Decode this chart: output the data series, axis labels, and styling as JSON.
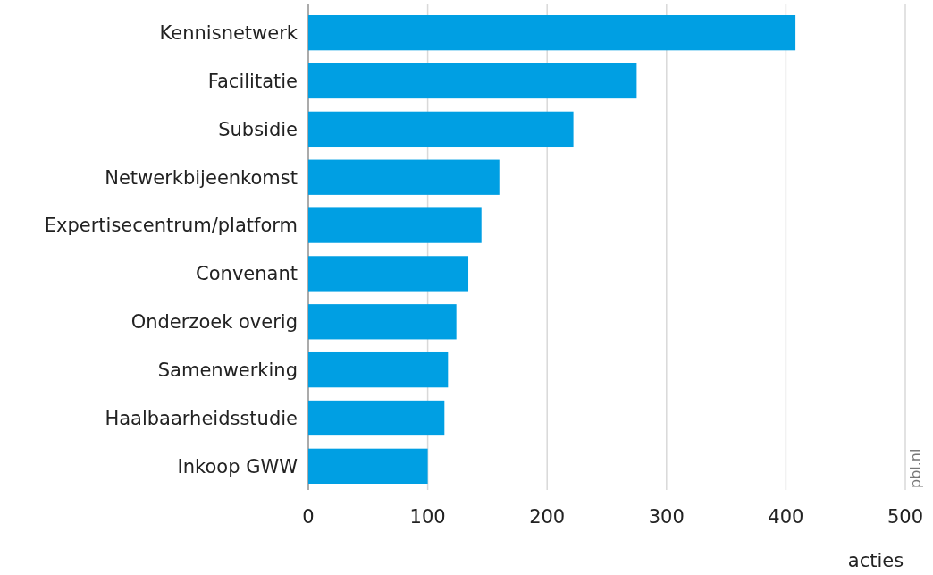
{
  "chart_data": {
    "type": "bar",
    "orientation": "horizontal",
    "categories": [
      "Kennisnetwerk",
      "Facilitatie",
      "Subsidie",
      "Netwerkbijeenkomst",
      "Expertisecentrum/platform",
      "Convenant",
      "Onderzoek overig",
      "Samenwerking",
      "Haalbaarheidsstudie",
      "Inkoop GWW"
    ],
    "values": [
      408,
      275,
      222,
      160,
      145,
      134,
      124,
      117,
      114,
      100
    ],
    "color": "#009fe3",
    "xlim": [
      0,
      500
    ],
    "xticks": [
      0,
      100,
      200,
      300,
      400,
      500
    ],
    "xlabel": "acties",
    "grid": "x",
    "annotations": [
      "pbl.nl"
    ]
  }
}
